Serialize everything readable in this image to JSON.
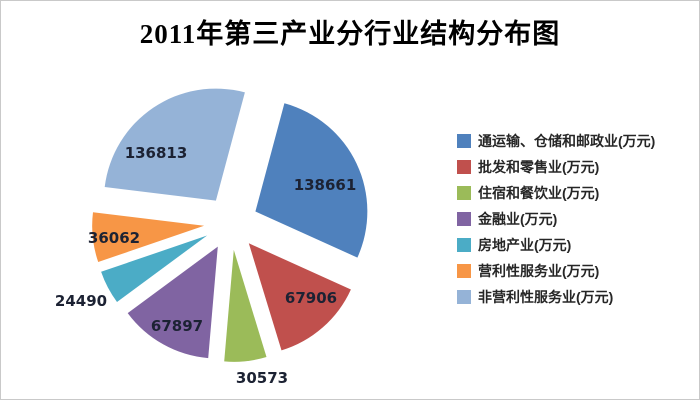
{
  "window": {
    "background": "#ffffff",
    "frame_border_color": "#c9c9c9"
  },
  "chart_data": {
    "type": "pie",
    "title": "2011年第三产业分行业结构分布图",
    "categories": [
      "通运输、仓储和邮政业(万元)",
      "批发和零售业(万元)",
      "住宿和餐饮业(万元)",
      "金融业(万元)",
      "房地产业(万元)",
      "营利性服务业(万元)",
      "非营利性服务业(万元)"
    ],
    "values": [
      138661,
      67906,
      30573,
      67897,
      24490,
      36062,
      136813
    ],
    "colors": [
      "#4F81BD",
      "#C0504D",
      "#9BBB59",
      "#8064A2",
      "#4BACC6",
      "#F79646",
      "#95B3D7"
    ],
    "data_labels": [
      "138661",
      "67906",
      "30573",
      "67897",
      "24490",
      "36062",
      "136813"
    ],
    "label_color": "#1c2233",
    "start_angle_deg": 15,
    "direction": "clockwise",
    "exploded": true,
    "legend_position": "right",
    "title_color": "#000000"
  }
}
